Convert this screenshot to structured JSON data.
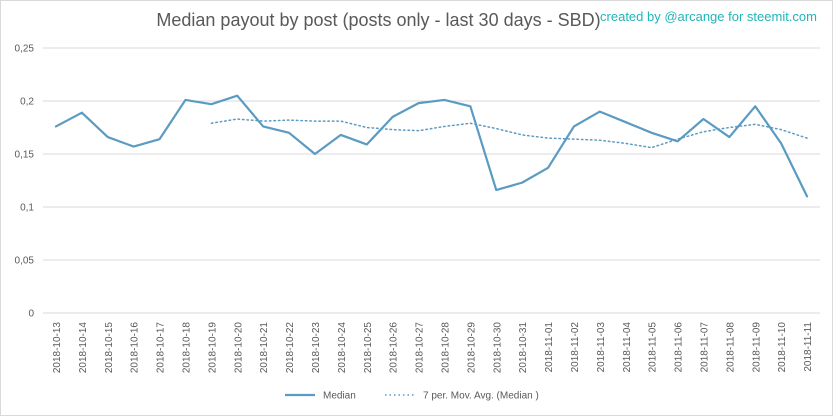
{
  "chart_data": {
    "type": "line",
    "title": "Median payout by post (posts only - last 30 days - SBD)",
    "credit": "created by @arcange for steemit.com",
    "ylim": [
      0,
      0.25
    ],
    "yticks": [
      "0",
      "0,05",
      "0,1",
      "0,15",
      "0,2",
      "0,25"
    ],
    "grid": true,
    "legend_position": "bottom",
    "categories": [
      "2018-10-13",
      "2018-10-14",
      "2018-10-15",
      "2018-10-16",
      "2018-10-17",
      "2018-10-18",
      "2018-10-19",
      "2018-10-20",
      "2018-10-21",
      "2018-10-22",
      "2018-10-23",
      "2018-10-24",
      "2018-10-25",
      "2018-10-26",
      "2018-10-27",
      "2018-10-28",
      "2018-10-29",
      "2018-10-30",
      "2018-10-31",
      "2018-11-01",
      "2018-11-02",
      "2018-11-03",
      "2018-11-04",
      "2018-11-05",
      "2018-11-06",
      "2018-11-07",
      "2018-11-08",
      "2018-11-09",
      "2018-11-10",
      "2018-11-11"
    ],
    "series": [
      {
        "name": "Median",
        "color": "#5b9bc2",
        "style": "solid",
        "values": [
          0.176,
          0.189,
          0.166,
          0.157,
          0.164,
          0.201,
          0.197,
          0.205,
          0.176,
          0.17,
          0.15,
          0.168,
          0.159,
          0.185,
          0.198,
          0.201,
          0.195,
          0.116,
          0.123,
          0.137,
          0.176,
          0.19,
          0.18,
          0.17,
          0.162,
          0.183,
          0.166,
          0.195,
          0.16,
          0.11
        ]
      },
      {
        "name": "7 per. Mov. Avg. (Median )",
        "color": "#5b9bc2",
        "style": "dotted",
        "values": [
          null,
          null,
          null,
          null,
          null,
          null,
          0.179,
          0.183,
          0.181,
          0.182,
          0.181,
          0.181,
          0.175,
          0.173,
          0.172,
          0.176,
          0.179,
          0.174,
          0.168,
          0.165,
          0.164,
          0.163,
          0.16,
          0.156,
          0.164,
          0.171,
          0.175,
          0.178,
          0.173,
          0.165
        ]
      }
    ]
  }
}
